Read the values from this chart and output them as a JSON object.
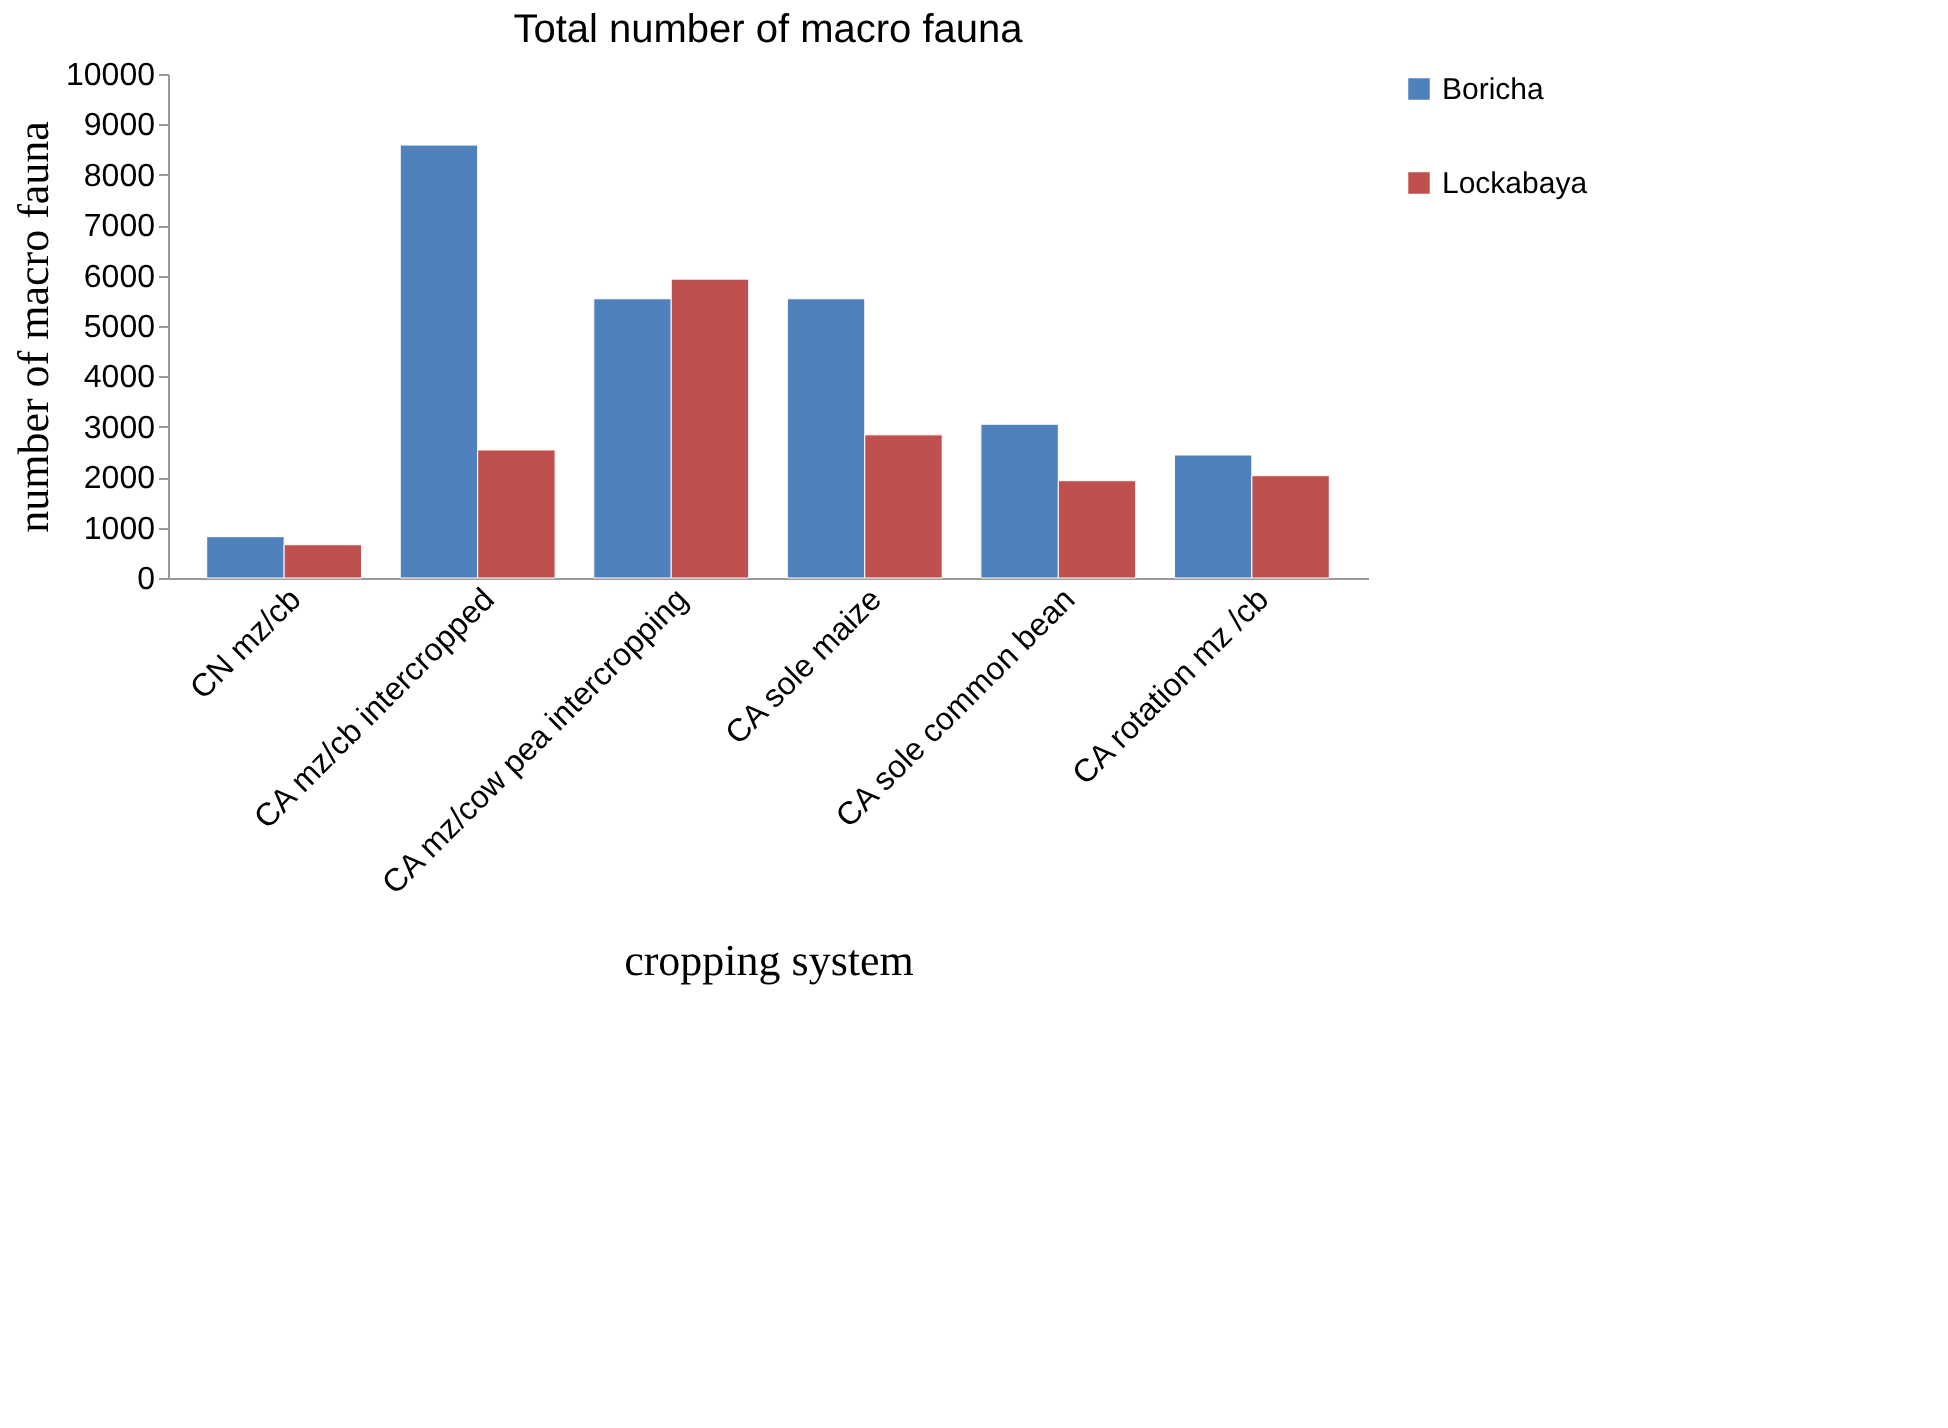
{
  "chart_data": {
    "type": "bar",
    "title": "Total number of macro fauna",
    "xlabel": "cropping system",
    "ylabel": "number of macro fauna",
    "categories": [
      "CN mz/cb",
      "CA mz/cb intercropped",
      "CA mz/cow pea intercropping",
      "CA sole maize",
      "CA sole common bean",
      "CA rotation mz /cb"
    ],
    "series": [
      {
        "name": "Boricha",
        "color": "#4f81bd",
        "values": [
          820,
          8590,
          5540,
          5540,
          3050,
          2440
        ]
      },
      {
        "name": "Lockabaya",
        "color": "#c0504d",
        "values": [
          660,
          2540,
          5930,
          2840,
          1930,
          2030
        ]
      }
    ],
    "ylim": [
      0,
      10000
    ],
    "yticks": [
      0,
      1000,
      2000,
      3000,
      4000,
      5000,
      6000,
      7000,
      8000,
      9000,
      10000
    ],
    "grid": false,
    "legend": "right"
  }
}
